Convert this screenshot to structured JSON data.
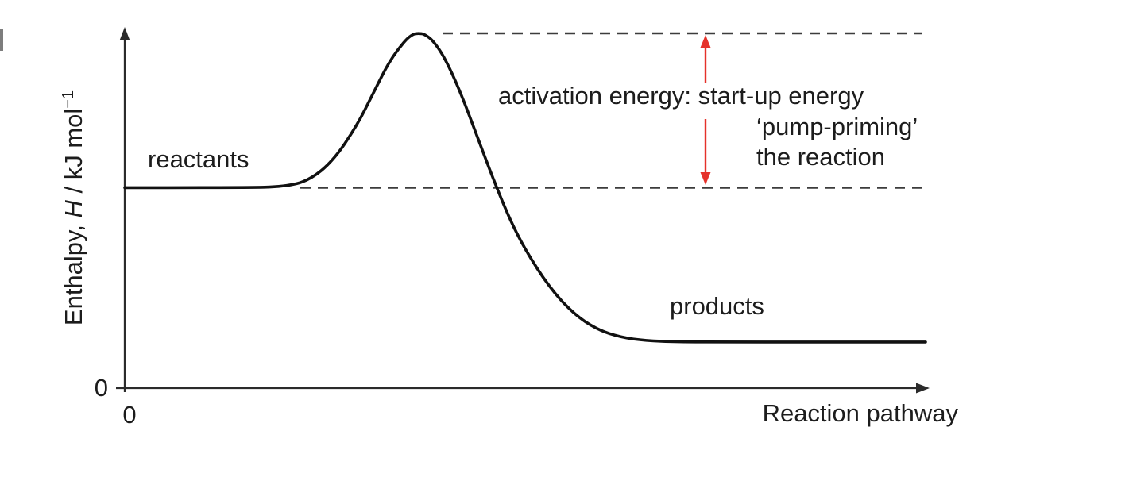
{
  "figure": {
    "background": "#ffffff",
    "labels": {
      "reactants": "reactants",
      "products": "products",
      "annotation_line1": "activation energy: start-up energy",
      "annotation_line2": "‘pump-priming’",
      "annotation_line3": "the reaction",
      "x_axis_label": "Reaction pathway",
      "y_axis_zero": "0",
      "x_axis_zero": "0",
      "y_label_prefix": "Enthalpy, ",
      "y_label_symbol": "H",
      "y_label_unit": " / kJ mol",
      "y_label_exponent": "−1"
    },
    "colors": {
      "curve": "#111111",
      "dashed_line": "#3c3c3c",
      "arrow_red": "#e5312a",
      "axis": "#2b2b2b",
      "text": "#1c1c1c"
    }
  },
  "chart_data": {
    "type": "line",
    "title": "",
    "xlabel": "Reaction pathway",
    "ylabel": "Enthalpy, H / kJ mol−1",
    "axis_numeric_labels": {
      "x": [
        "0"
      ],
      "y": [
        "0"
      ]
    },
    "x_range_shown": [
      0,
      10
    ],
    "y_range_shown": [
      0,
      110
    ],
    "grid": false,
    "legend": "none",
    "series": [
      {
        "name": "reaction-energy-profile",
        "x": [
          0,
          1.5,
          2.0,
          2.3,
          2.6,
          2.9,
          3.1,
          3.3,
          3.5,
          3.6,
          3.67,
          3.74,
          3.85,
          4.0,
          4.2,
          4.4,
          4.6,
          4.8,
          5.0,
          5.3,
          5.6,
          5.9,
          6.2,
          6.5,
          6.9,
          7.5,
          8.5,
          10
        ],
        "y": [
          56.5,
          56.5,
          56.8,
          58.5,
          64,
          74,
          83,
          92,
          98,
          99.8,
          100,
          99.8,
          98,
          93,
          83,
          71,
          59,
          48,
          39,
          28.5,
          21,
          16.5,
          14.3,
          13.4,
          13.05,
          13,
          13,
          13
        ]
      }
    ],
    "key_levels": {
      "reactants_enthalpy_relative": 56.5,
      "peak_enthalpy_relative": 100,
      "products_enthalpy_relative": 13,
      "activation_energy_relative": 43.5
    },
    "annotations": [
      {
        "text": "reactants",
        "attached_to": "reactant plateau (left)"
      },
      {
        "text": "products",
        "attached_to": "product plateau (right, lower than reactants)"
      },
      {
        "text": "activation energy: start-up energy ‘pump-priming’ the reaction",
        "attached_to": "red double-headed vertical arrow between peak dashed level and reactant dashed level"
      }
    ],
    "notes": "Exothermic reaction enthalpy profile; only the 0 origin is numerically labelled, values are relative units."
  }
}
